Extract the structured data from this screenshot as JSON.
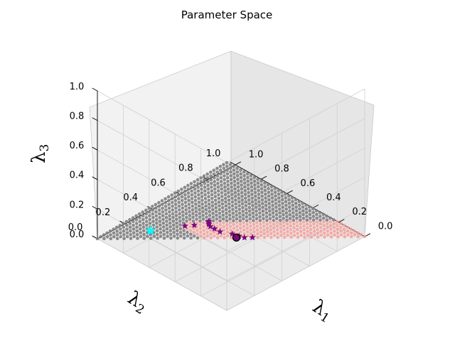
{
  "chart_data": {
    "type": "scatter",
    "projection": "3d",
    "title": "Parameter Space",
    "axes": {
      "x": {
        "label": "λ",
        "subscript": "1",
        "ticks": [
          "0.0",
          "0.2",
          "0.4",
          "0.6",
          "0.8",
          "1.0"
        ],
        "range": [
          0,
          1
        ]
      },
      "y": {
        "label": "λ",
        "subscript": "2",
        "ticks": [
          "0.0",
          "0.2",
          "0.4",
          "0.6",
          "0.8",
          "1.0"
        ],
        "range": [
          0,
          1
        ]
      },
      "z": {
        "label": "λ",
        "subscript": "3",
        "ticks": [
          "0.0",
          "0.2",
          "0.4",
          "0.6",
          "0.8",
          "1.0"
        ],
        "range": [
          0,
          1
        ]
      }
    },
    "grid": true,
    "series": [
      {
        "marker": "dot",
        "color": "#808080",
        "description_of_set": "simplex grid λ1+λ2+λ3=1, step 0.025"
      },
      {
        "marker": "dot",
        "color": "#f4a09a",
        "region": {
          "lambda3_max": 0.2,
          "lambda2_max": 0.6,
          "lambda1_min": 0.25
        }
      },
      {
        "marker": "star",
        "color": "#7b0a7b",
        "points": [
          [
            0.55,
            0.45,
            0.0
          ],
          [
            0.58,
            0.42,
            0.0
          ],
          [
            0.52,
            0.46,
            0.02
          ],
          [
            0.48,
            0.47,
            0.05
          ],
          [
            0.42,
            0.5,
            0.08
          ],
          [
            0.38,
            0.5,
            0.12
          ],
          [
            0.35,
            0.5,
            0.15
          ],
          [
            0.33,
            0.49,
            0.18
          ],
          [
            0.32,
            0.48,
            0.2
          ],
          [
            0.31,
            0.47,
            0.22
          ],
          [
            0.28,
            0.55,
            0.17
          ],
          [
            0.25,
            0.59,
            0.16
          ]
        ]
      },
      {
        "marker": "star",
        "color": "#00ffff",
        "points": [
          [
            0.15,
            0.75,
            0.1
          ]
        ]
      },
      {
        "marker": "circle",
        "color": "#7b0a7b",
        "edgecolor": "#000000",
        "points": [
          [
            0.52,
            0.48,
            0.0
          ]
        ]
      }
    ]
  }
}
